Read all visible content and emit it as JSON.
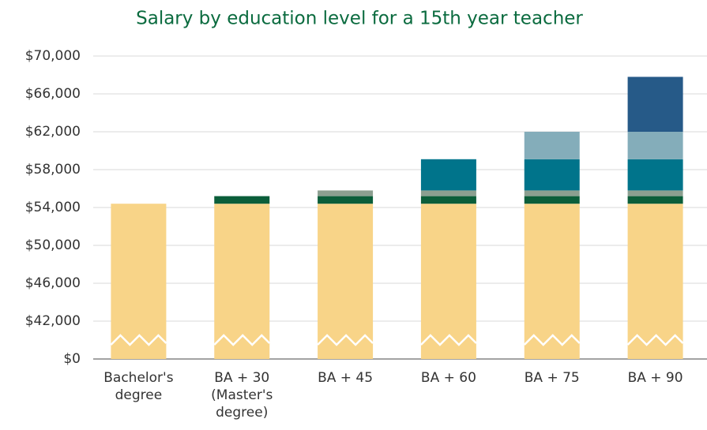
{
  "chart_data": {
    "type": "stacked_bar",
    "title": "Salary by education level for a 15th year teacher",
    "categories": [
      "Bachelor's\ndegree",
      "BA + 30\n(Master's\ndegree)",
      "BA + 45",
      "BA + 60",
      "BA + 75",
      "BA + 90"
    ],
    "series": [
      {
        "color": "#f8d488",
        "values": [
          54400,
          54400,
          54400,
          54400,
          54400,
          54400
        ]
      },
      {
        "color": "#0b5e3a",
        "values": [
          null,
          800,
          800,
          800,
          800,
          800
        ]
      },
      {
        "color": "#8c9f90",
        "values": [
          null,
          null,
          600,
          600,
          600,
          600
        ]
      },
      {
        "color": "#00748b",
        "values": [
          null,
          null,
          null,
          3300,
          3300,
          3300
        ]
      },
      {
        "color": "#84adba",
        "values": [
          null,
          null,
          null,
          null,
          2900,
          2900
        ]
      },
      {
        "color": "#265a88",
        "values": [
          null,
          null,
          null,
          null,
          null,
          5800
        ]
      }
    ],
    "ylim": [
      0,
      70000
    ],
    "yticks": [
      {
        "value": 0,
        "label": "$0"
      },
      {
        "value": 42000,
        "label": "$42,000"
      },
      {
        "value": 46000,
        "label": "$46,000"
      },
      {
        "value": 50000,
        "label": "$50,000"
      },
      {
        "value": 54000,
        "label": "$54,000"
      },
      {
        "value": 58000,
        "label": "$58,000"
      },
      {
        "value": 62000,
        "label": "$62,000"
      },
      {
        "value": 66000,
        "label": "$66,000"
      },
      {
        "value": 70000,
        "label": "$70,000"
      }
    ],
    "axis_break": true,
    "grid": true
  }
}
